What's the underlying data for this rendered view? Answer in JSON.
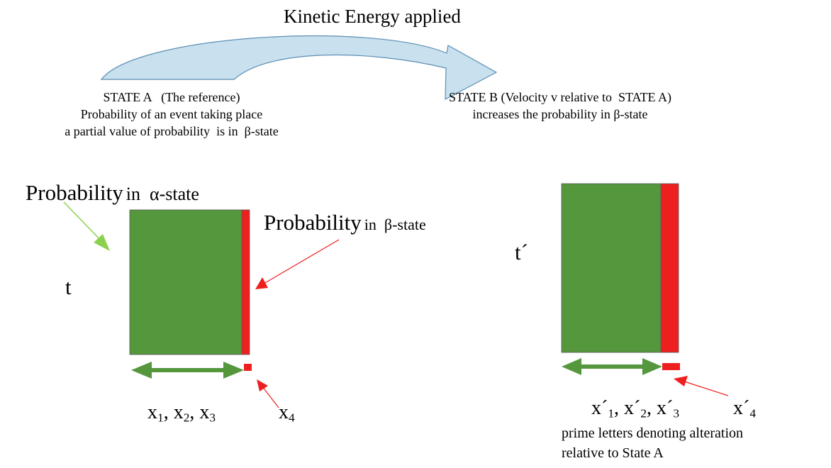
{
  "title": "Kinetic Energy applied",
  "state_a": {
    "line1": "STATE A   (The reference)",
    "line2": "Probability of an event taking place",
    "line3": "a partial value of probability  is in  β-state"
  },
  "state_b": {
    "line1": "STATE B (Velocity v relative to  STATE A)",
    "line2": "increases the probability in β-state"
  },
  "labels": {
    "alpha_word": "Probability",
    "alpha_suffix": "in  α-state",
    "beta_word": "Probability",
    "beta_suffix": "in  β-state",
    "t": "t",
    "t_prime": "t´",
    "x_first": "x",
    "sub1": "1",
    "sep1": ", x",
    "sub2": "2",
    "sep2": ", x",
    "sub3": "3",
    "x4": "x",
    "sub4": "4",
    "xp_first": "x´",
    "xp_sep1": ", x´",
    "xp_sep2": ", x´",
    "xp4": "x´",
    "note_line1": "prime letters denoting alteration",
    "note_line2": "relative to State A"
  },
  "colors": {
    "green": "#55973d",
    "red": "#ee1f1f",
    "arrow_fill": "#c9e0ee",
    "arrow_stroke": "#5b8fb5",
    "green_pointer": "#8cd14e"
  }
}
